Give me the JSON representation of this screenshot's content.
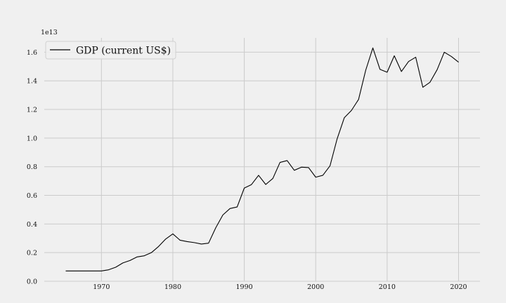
{
  "chart_data": {
    "type": "line",
    "title": "",
    "xlabel": "",
    "ylabel": "",
    "xlim": [
      1962,
      2023
    ],
    "ylim": [
      0,
      1.7
    ],
    "y_offset_label": "1e13",
    "grid": true,
    "legend": {
      "placement": "top-left",
      "entries": [
        "GDP (current US$)"
      ]
    },
    "x_ticks": [
      {
        "value": 1970,
        "label": "1970"
      },
      {
        "value": 1980,
        "label": "1980"
      },
      {
        "value": 1990,
        "label": "1990"
      },
      {
        "value": 2000,
        "label": "2000"
      },
      {
        "value": 2010,
        "label": "2010"
      },
      {
        "value": 2020,
        "label": "2020"
      }
    ],
    "y_ticks": [
      {
        "value": 0.0,
        "label": "0.0"
      },
      {
        "value": 0.2,
        "label": "0.2"
      },
      {
        "value": 0.4,
        "label": "0.4"
      },
      {
        "value": 0.6,
        "label": "0.6"
      },
      {
        "value": 0.8,
        "label": "0.8"
      },
      {
        "value": 1.0,
        "label": "1.0"
      },
      {
        "value": 1.2,
        "label": "1.2"
      },
      {
        "value": 1.4,
        "label": "1.4"
      },
      {
        "value": 1.6,
        "label": "1.6"
      }
    ],
    "series": [
      {
        "name": "GDP (current US$)",
        "color": "#000000",
        "x": [
          1965,
          1966,
          1967,
          1968,
          1969,
          1970,
          1971,
          1972,
          1973,
          1974,
          1975,
          1976,
          1977,
          1978,
          1979,
          1980,
          1981,
          1982,
          1983,
          1984,
          1985,
          1986,
          1987,
          1988,
          1989,
          1990,
          1991,
          1992,
          1993,
          1994,
          1995,
          1996,
          1997,
          1998,
          1999,
          2000,
          2001,
          2002,
          2003,
          2004,
          2005,
          2006,
          2007,
          2008,
          2009,
          2010,
          2011,
          2012,
          2013,
          2014,
          2015,
          2016,
          2017,
          2018,
          2019,
          2020
        ],
        "y": [
          0.072,
          0.072,
          0.072,
          0.072,
          0.072,
          0.072,
          0.08,
          0.098,
          0.128,
          0.145,
          0.17,
          0.178,
          0.2,
          0.243,
          0.295,
          0.331,
          0.287,
          0.277,
          0.27,
          0.26,
          0.266,
          0.373,
          0.463,
          0.508,
          0.519,
          0.651,
          0.675,
          0.74,
          0.676,
          0.718,
          0.83,
          0.843,
          0.775,
          0.797,
          0.794,
          0.727,
          0.74,
          0.806,
          0.995,
          1.142,
          1.193,
          1.27,
          1.474,
          1.63,
          1.48,
          1.46,
          1.575,
          1.465,
          1.535,
          1.565,
          1.355,
          1.39,
          1.478,
          1.6,
          1.57,
          1.53
        ]
      }
    ]
  }
}
